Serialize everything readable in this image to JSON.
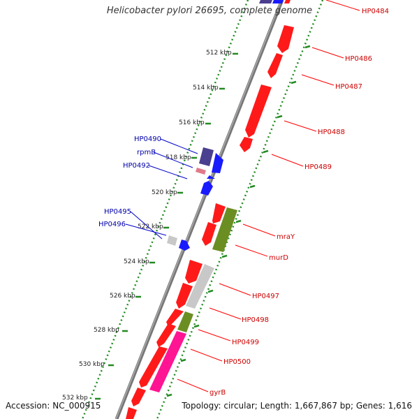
{
  "title": "Helicobacter pylori 26695, complete genome",
  "footer": {
    "accession": "Accession: NC_000915",
    "topology": "Topology: circular; Length: 1,667,867 bp; Genes: 1,616"
  },
  "colors": {
    "forward_gene": "#1a1aff",
    "reverse_gene": "#ff1a1a",
    "forward_label": "#0000aa",
    "reverse_label": "#cc0000",
    "tick": "#228b22",
    "backbone": "#808080",
    "olive": "#6b8e23",
    "magenta": "#ff1493",
    "grey_feature": "#c8c8c8",
    "purple_feature": "#4b3f8f",
    "pink_feature": "#e07a8a"
  },
  "ruler_labels": [
    "512 kbp",
    "514 kbp",
    "516 kbp",
    "518 kbp",
    "520 kbp",
    "522 kbp",
    "524 kbp",
    "526 kbp",
    "528 kbp",
    "530 kbp",
    "532 kbp"
  ],
  "forward_labels": [
    "HP0490",
    "rpmB",
    "HP0492",
    "HP0495",
    "HP0496"
  ],
  "reverse_labels": [
    "HP0484",
    "HP0486",
    "HP0487",
    "HP0488",
    "HP0489",
    "mraY",
    "murD",
    "HP0497",
    "HP0498",
    "HP0499",
    "HP0500",
    "gyrB"
  ]
}
